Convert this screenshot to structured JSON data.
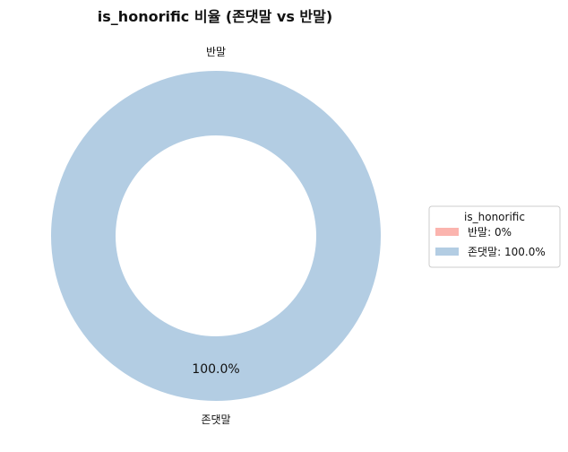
{
  "chart_data": {
    "type": "pie",
    "style": "donut",
    "title": "is_honorific 비율 (존댓말 vs 반말)",
    "categories": [
      "반말",
      "존댓말"
    ],
    "values": [
      0,
      100.0
    ],
    "percent_labels": [
      "",
      "100.0%"
    ],
    "colors": [
      "#fbb4ae",
      "#b3cde3"
    ],
    "legend": {
      "title": "is_honorific",
      "placement": "right",
      "entries": [
        "반말: 0%",
        "존댓말: 100.0%"
      ]
    }
  }
}
